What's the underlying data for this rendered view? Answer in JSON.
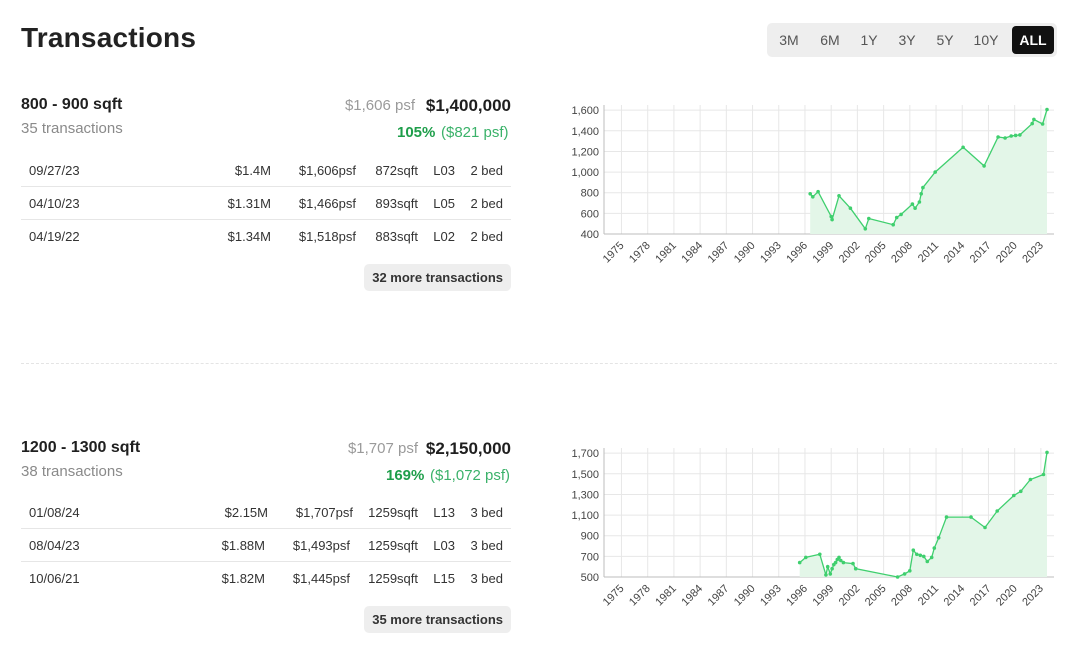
{
  "page": {
    "title": "Transactions"
  },
  "range_tabs": [
    {
      "label": "3M",
      "active": false
    },
    {
      "label": "6M",
      "active": false
    },
    {
      "label": "1Y",
      "active": false
    },
    {
      "label": "3Y",
      "active": false
    },
    {
      "label": "5Y",
      "active": false
    },
    {
      "label": "10Y",
      "active": false
    },
    {
      "label": "ALL",
      "active": true
    }
  ],
  "groups": [
    {
      "title": "800 - 900 sqft",
      "count": "35 transactions",
      "psf": "$1,606 psf",
      "price": "$1,400,000",
      "change_pct": "105%",
      "change_psf": "($821 psf)",
      "rows": [
        {
          "date": "09/27/23",
          "price": "$1.4M",
          "psf": "$1,606psf",
          "sqft": "872sqft",
          "floor": "L03",
          "bed": "2 bed"
        },
        {
          "date": "04/10/23",
          "price": "$1.31M",
          "psf": "$1,466psf",
          "sqft": "893sqft",
          "floor": "L05",
          "bed": "2 bed"
        },
        {
          "date": "04/19/22",
          "price": "$1.34M",
          "psf": "$1,518psf",
          "sqft": "883sqft",
          "floor": "L02",
          "bed": "2 bed"
        }
      ],
      "more_label": "32 more transactions"
    },
    {
      "title": "1200 - 1300 sqft",
      "count": "38 transactions",
      "psf": "$1,707 psf",
      "price": "$2,150,000",
      "change_pct": "169%",
      "change_psf": "($1,072 psf)",
      "rows": [
        {
          "date": "01/08/24",
          "price": "$2.15M",
          "psf": "$1,707psf",
          "sqft": "1259sqft",
          "floor": "L13",
          "bed": "3 bed"
        },
        {
          "date": "08/04/23",
          "price": "$1.88M",
          "psf": "$1,493psf",
          "sqft": "1259sqft",
          "floor": "L03",
          "bed": "3 bed"
        },
        {
          "date": "10/06/21",
          "price": "$1.82M",
          "psf": "$1,445psf",
          "sqft": "1259sqft",
          "floor": "L15",
          "bed": "3 bed"
        }
      ],
      "more_label": "35 more transactions"
    }
  ],
  "chart_data": [
    {
      "type": "area",
      "series_color": "#3fcf6e",
      "fill_color": "#e3f6e8",
      "xlim": [
        1973,
        2024.5
      ],
      "xticks": [
        "1975",
        "1978",
        "1981",
        "1984",
        "1987",
        "1990",
        "1993",
        "1996",
        "1999",
        "2002",
        "2005",
        "2008",
        "2011",
        "2014",
        "2017",
        "2020",
        "2023"
      ],
      "ylim": [
        400,
        1650
      ],
      "yticks": [
        "400",
        "600",
        "800",
        "1,000",
        "1,200",
        "1,400",
        "1,600"
      ],
      "grid": true,
      "x": [
        1996.6,
        1996.9,
        1997.5,
        1999.0,
        1999.1,
        1999.9,
        2001.2,
        2002.9,
        2003.3,
        2006.1,
        2006.5,
        2007.0,
        2008.3,
        2008.6,
        2009.1,
        2009.3,
        2009.5,
        2010.9,
        2014.1,
        2016.5,
        2018.1,
        2018.9,
        2019.6,
        2020.1,
        2020.6,
        2022.0,
        2022.2,
        2023.2,
        2023.7
      ],
      "y": [
        790,
        760,
        810,
        570,
        540,
        770,
        650,
        450,
        550,
        490,
        560,
        590,
        690,
        650,
        710,
        790,
        850,
        1000,
        1240,
        1060,
        1340,
        1330,
        1350,
        1355,
        1360,
        1470,
        1510,
        1466,
        1606
      ]
    },
    {
      "type": "area",
      "series_color": "#3fcf6e",
      "fill_color": "#e3f6e8",
      "xlim": [
        1973,
        2024.5
      ],
      "xticks": [
        "1975",
        "1978",
        "1981",
        "1984",
        "1987",
        "1990",
        "1993",
        "1996",
        "1999",
        "2002",
        "2005",
        "2008",
        "2011",
        "2014",
        "2017",
        "2020",
        "2023"
      ],
      "ylim": [
        500,
        1750
      ],
      "yticks": [
        "500",
        "700",
        "900",
        "1,100",
        "1,300",
        "1,500",
        "1,700"
      ],
      "grid": true,
      "x": [
        1995.4,
        1996.1,
        1997.7,
        1998.4,
        1998.6,
        1998.9,
        1999.1,
        1999.3,
        1999.5,
        1999.7,
        1999.9,
        2000.1,
        2000.4,
        2001.5,
        2001.8,
        2006.6,
        2007.4,
        2008.0,
        2008.4,
        2008.8,
        2009.2,
        2009.6,
        2010.0,
        2010.5,
        2010.8,
        2011.3,
        2012.2,
        2015.0,
        2016.6,
        2018.0,
        2019.9,
        2020.7,
        2021.8,
        2023.3,
        2023.7
      ],
      "y": [
        640,
        690,
        720,
        520,
        600,
        530,
        580,
        620,
        640,
        670,
        690,
        660,
        640,
        630,
        580,
        500,
        530,
        560,
        760,
        720,
        710,
        700,
        650,
        690,
        780,
        880,
        1080,
        1080,
        980,
        1140,
        1290,
        1330,
        1445,
        1493,
        1707
      ]
    }
  ]
}
